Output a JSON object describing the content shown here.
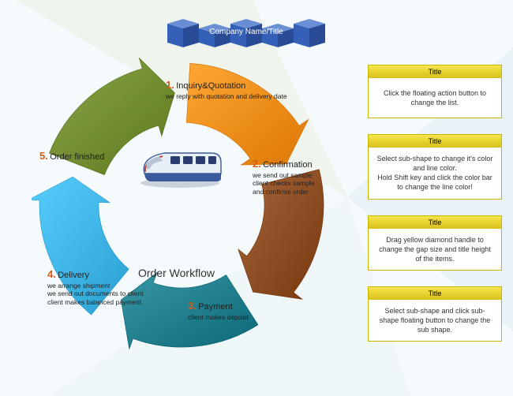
{
  "background": {
    "base_color": "#f5fafc",
    "star_colors": [
      "#e4edd2",
      "#d1e6ee",
      "#e8f2f6"
    ]
  },
  "header": {
    "label": "Company Name/Title",
    "cube_colors": {
      "top": "#6a8fd4",
      "front": "#3560b7",
      "side": "#2a4c96"
    },
    "text_color": "#ffffff",
    "fontsize": 10
  },
  "cycle": {
    "type": "cycle-arrows",
    "center_title": "Order Workflow",
    "center_fontsize": 14,
    "steps": [
      {
        "num": "1.",
        "title": "Inquiry&Quotation",
        "desc": "we reply with quotation and delivery date",
        "arrow_color": "#ee8a17",
        "num_color": "#d85a14"
      },
      {
        "num": "2.",
        "title": "Confirmation",
        "desc": "we send out sample\nclient checks sample\nand confirms order",
        "arrow_color": "#8a4a20",
        "num_color": "#d85a14"
      },
      {
        "num": "3.",
        "title": "Payment",
        "desc": "client makes deposit",
        "arrow_color": "#1d7a88",
        "num_color": "#d85a14"
      },
      {
        "num": "4.",
        "title": "Delivery",
        "desc": "we arrange shipment\nwe send out documents to client\nclient makes balanced payment",
        "arrow_color": "#3cb2e4",
        "num_color": "#d85a14"
      },
      {
        "num": "5.",
        "title": "Order finished",
        "desc": "",
        "arrow_color": "#6f8a2e",
        "num_color": "#d85a14"
      }
    ],
    "outer_radius": 180,
    "inner_radius": 105,
    "arrowhead_w": 26
  },
  "cards": [
    {
      "title": "Title",
      "body": "Click the floating action button to change the list."
    },
    {
      "title": "Title",
      "body": "Select sub-shape to change it's color and line color.\n\nHold Shift key and click the color bar to change the line color!"
    },
    {
      "title": "Title",
      "body": "Drag yellow diamond handle to change the gap size and title height of the items."
    },
    {
      "title": "Title",
      "body": "Select sub-shape and click sub-shape floating button to change the sub shape."
    }
  ],
  "card_style": {
    "title_bg_top": "#f6e64e",
    "title_bg_bottom": "#d7bf17",
    "border_color": "#c9b400",
    "title_fontsize": 9,
    "body_fontsize": 9
  },
  "train_colors": {
    "body_light": "#e8eef6",
    "body_dark": "#3a5a9c",
    "windows": "#2a3d6e",
    "nose": "#b8c4d6",
    "track": "#7a8aa0"
  }
}
